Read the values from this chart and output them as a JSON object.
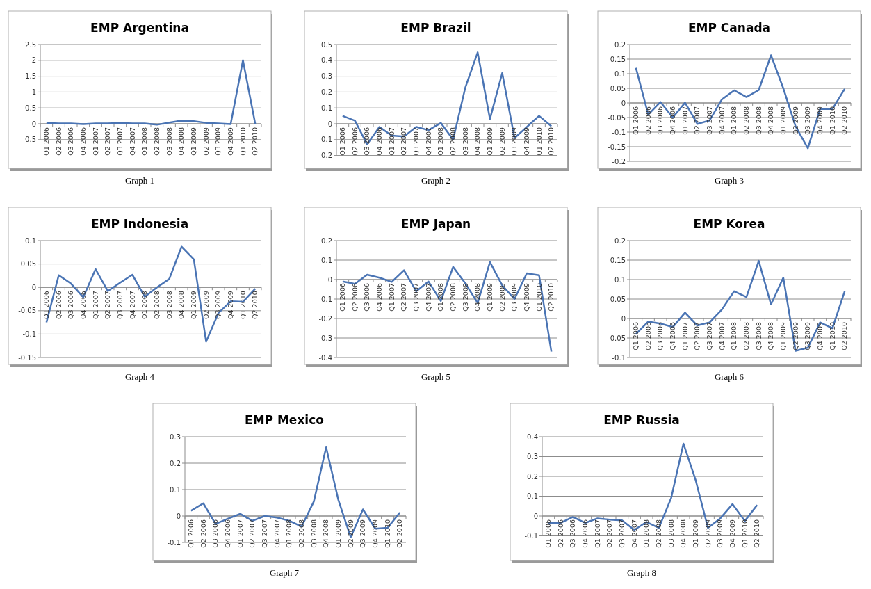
{
  "chart_data": [
    {
      "type": "line",
      "title": "EMP Argentina",
      "categories": [
        "Q1 2006",
        "Q2 2006",
        "Q3 2006",
        "Q4 2006",
        "Q1 2007",
        "Q2 2007",
        "Q3 2007",
        "Q4 2007",
        "Q1 2008",
        "Q2 2008",
        "Q3 2008",
        "Q4 2008",
        "Q1 2009",
        "Q2 2009",
        "Q3 2009",
        "Q4 2009",
        "Q1 2010",
        "Q2 2010"
      ],
      "values": [
        0.03,
        0.01,
        0.01,
        -0.01,
        0.01,
        0.01,
        0.03,
        0.01,
        0.01,
        -0.03,
        0.04,
        0.1,
        0.08,
        0.03,
        0.01,
        -0.01,
        2.0,
        0
      ],
      "color": "#4a74b4",
      "ylim": [
        -0.5,
        2.5
      ],
      "yticks": [
        -0.5,
        0,
        0.5,
        1,
        1.5,
        2,
        2.5
      ],
      "grid": "y",
      "annotations": [
        "Graph 1"
      ]
    },
    {
      "type": "line",
      "title": "EMP Brazil",
      "categories": [
        "Q1 2006",
        "Q2 2006",
        "Q3 2006",
        "Q4 2006",
        "Q1 2007",
        "Q2 2007",
        "Q3 2007",
        "Q4 2007",
        "Q1 2008",
        "Q2 2008",
        "Q3 2008",
        "Q4 2008",
        "Q1 2009",
        "Q2 2009",
        "Q3 2009",
        "Q4 2009",
        "Q1 2010",
        "Q2 2010"
      ],
      "values": [
        0.05,
        0.02,
        -0.13,
        -0.02,
        -0.075,
        -0.08,
        -0.02,
        -0.04,
        0.005,
        -0.1,
        0.23,
        0.45,
        0.03,
        0.32,
        -0.09,
        -0.02,
        0.05,
        -0.015
      ],
      "color": "#4a74b4",
      "ylim": [
        -0.2,
        0.5
      ],
      "yticks": [
        -0.2,
        -0.1,
        0,
        0.1,
        0.2,
        0.3,
        0.4,
        0.5
      ],
      "grid": "y",
      "annotations": [
        "Graph 2"
      ]
    },
    {
      "type": "line",
      "title": "EMP Canada",
      "categories": [
        "Q1 2006",
        "Q2 2006",
        "Q3 2006",
        "Q4 2006",
        "Q1 2007",
        "Q2 2007",
        "Q3 2007",
        "Q4 2007",
        "Q1 2008",
        "Q2 2008",
        "Q3 2008",
        "Q4 2008",
        "Q1 2009",
        "Q2 2009",
        "Q3 2009",
        "Q4 2009",
        "Q1 2010",
        "Q2 2010"
      ],
      "values": [
        0.12,
        -0.04,
        0.003,
        -0.05,
        0.001,
        -0.072,
        -0.06,
        0.012,
        0.043,
        0.02,
        0.044,
        0.163,
        0.05,
        -0.08,
        -0.155,
        -0.02,
        -0.021,
        0.048
      ],
      "color": "#4a74b4",
      "ylim": [
        -0.2,
        0.2
      ],
      "yticks": [
        -0.2,
        -0.15,
        -0.1,
        -0.05,
        0,
        0.05,
        0.1,
        0.15,
        0.2
      ],
      "grid": "y",
      "annotations": [
        "Graph 3"
      ]
    },
    {
      "type": "line",
      "title": "EMP Indonesia",
      "categories": [
        "Q1 2006",
        "Q2 2006",
        "Q3 2006",
        "Q4 2006",
        "Q1 2007",
        "Q2 2007",
        "Q3 2007",
        "Q4 2007",
        "Q1 2008",
        "Q2 2008",
        "Q3 2008",
        "Q4 2008",
        "Q1 2009",
        "Q2 2009",
        "Q3 2009",
        "Q4 2009",
        "Q1 2010",
        "Q2 2010"
      ],
      "values": [
        -0.075,
        0.026,
        0.008,
        -0.021,
        0.039,
        -0.008,
        0.01,
        0.027,
        -0.02,
        0.0,
        0.018,
        0.087,
        0.06,
        -0.116,
        -0.055,
        -0.03,
        -0.031,
        -0.003
      ],
      "color": "#4a74b4",
      "ylim": [
        -0.15,
        0.1
      ],
      "yticks": [
        -0.15,
        -0.1,
        -0.05,
        0,
        0.05,
        0.1
      ],
      "grid": "y",
      "annotations": [
        "Graph 4"
      ]
    },
    {
      "type": "line",
      "title": "EMP Japan",
      "categories": [
        "Q1 2006",
        "Q2 2006",
        "Q3 2006",
        "Q4 2006",
        "Q1 2007",
        "Q2 2007",
        "Q3 2007",
        "Q4 2007",
        "Q1 2008",
        "Q2 2008",
        "Q3 2008",
        "Q4 2008",
        "Q1 2009",
        "Q2 2009",
        "Q3 2009",
        "Q4 2009",
        "Q1 2010",
        "Q2 2010"
      ],
      "values": [
        -0.01,
        -0.022,
        0.025,
        0.01,
        -0.012,
        0.048,
        -0.06,
        -0.01,
        -0.11,
        0.065,
        -0.02,
        -0.12,
        0.09,
        -0.03,
        -0.1,
        0.032,
        0.022,
        -0.37
      ],
      "color": "#4a74b4",
      "ylim": [
        -0.4,
        0.2
      ],
      "yticks": [
        -0.4,
        -0.3,
        -0.2,
        -0.1,
        0,
        0.1,
        0.2
      ],
      "grid": "y",
      "annotations": [
        "Graph 5"
      ]
    },
    {
      "type": "line",
      "title": "EMP Korea",
      "categories": [
        "Q1 2006",
        "Q2 2006",
        "Q3 2006",
        "Q4 2006",
        "Q1 2007",
        "Q2 2007",
        "Q3 2007",
        "Q4 2007",
        "Q1 2008",
        "Q2 2008",
        "Q3 2008",
        "Q4 2008",
        "Q1 2009",
        "Q2 2009",
        "Q3 2009",
        "Q4 2009",
        "Q1 2010",
        "Q2 2010"
      ],
      "values": [
        -0.04,
        -0.008,
        -0.013,
        -0.022,
        0.015,
        -0.018,
        -0.01,
        0.023,
        0.07,
        0.055,
        0.148,
        0.036,
        0.105,
        -0.083,
        -0.075,
        -0.01,
        -0.025,
        0.07
      ],
      "color": "#4a74b4",
      "ylim": [
        -0.1,
        0.2
      ],
      "yticks": [
        -0.1,
        -0.05,
        0,
        0.05,
        0.1,
        0.15,
        0.2
      ],
      "grid": "y",
      "annotations": [
        "Graph 6"
      ]
    },
    {
      "type": "line",
      "title": "EMP Mexico",
      "categories": [
        "Q1 2006",
        "Q2 2006",
        "Q3 2006",
        "Q4 2006",
        "Q1 2007",
        "Q2 2007",
        "Q3 2007",
        "Q4 2007",
        "Q1 2008",
        "Q2 2008",
        "Q3 2008",
        "Q4 2008",
        "Q1 2009",
        "Q2 2009",
        "Q3 2009",
        "Q4 2009",
        "Q1 2010",
        "Q2 2010"
      ],
      "values": [
        0.02,
        0.048,
        -0.03,
        -0.01,
        0.008,
        -0.018,
        0.0,
        -0.006,
        -0.018,
        -0.04,
        0.055,
        0.26,
        0.06,
        -0.08,
        0.025,
        -0.048,
        -0.045,
        0.013
      ],
      "color": "#4a74b4",
      "ylim": [
        -0.1,
        0.3
      ],
      "yticks": [
        -0.1,
        0,
        0.1,
        0.2,
        0.3
      ],
      "grid": "y",
      "annotations": [
        "Graph 7"
      ]
    },
    {
      "type": "line",
      "title": "EMP Russia",
      "categories": [
        "Q1 2006",
        "Q2 2006",
        "Q3 2006",
        "Q4 2006",
        "Q1 2007",
        "Q2 2007",
        "Q3 2007",
        "Q4 2007",
        "Q1 2008",
        "Q2 2008",
        "Q3 2008",
        "Q4 2008",
        "Q1 2009",
        "Q2 2009",
        "Q3 2009",
        "Q4 2009",
        "Q1 2010",
        "Q2 2010"
      ],
      "values": [
        -0.035,
        -0.035,
        -0.005,
        -0.035,
        -0.012,
        -0.018,
        -0.022,
        -0.07,
        -0.03,
        -0.06,
        0.09,
        0.365,
        0.18,
        -0.06,
        -0.012,
        0.06,
        -0.025,
        0.055
      ],
      "color": "#4a74b4",
      "ylim": [
        -0.1,
        0.4
      ],
      "yticks": [
        -0.1,
        0,
        0.1,
        0.2,
        0.3,
        0.4
      ],
      "grid": "y",
      "annotations": [
        "Graph 8"
      ]
    }
  ]
}
